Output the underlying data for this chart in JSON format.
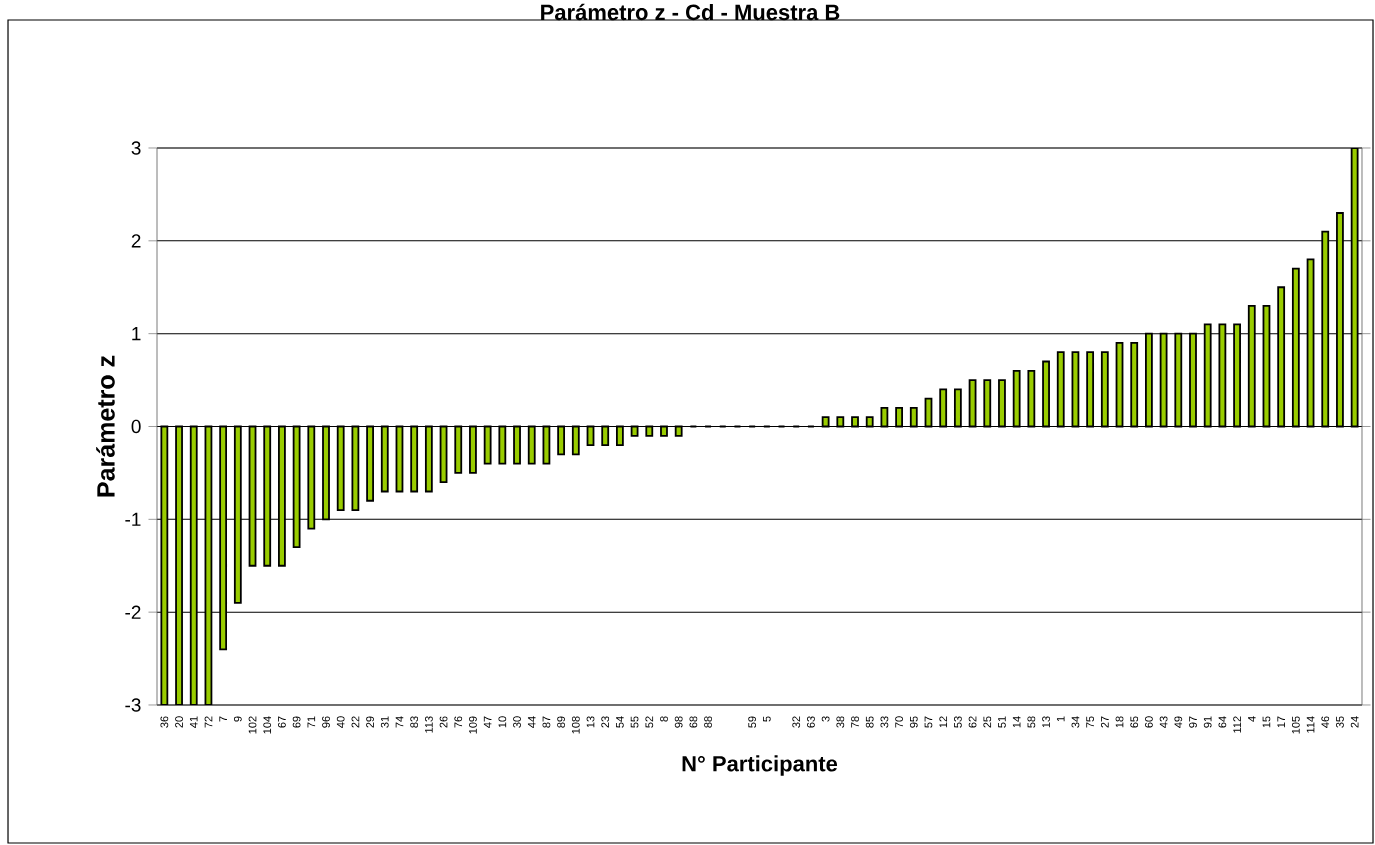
{
  "chart_data": {
    "type": "bar",
    "title": "Parámetro z - Cd - Muestra B",
    "xlabel": "N° Participante",
    "ylabel": "Parámetro z",
    "categories": [
      "36",
      "20",
      "41",
      "72",
      "7",
      "9",
      "102",
      "104",
      "67",
      "69",
      "71",
      "96",
      "40",
      "22",
      "29",
      "31",
      "74",
      "83",
      "113",
      "26",
      "76",
      "109",
      "47",
      "10",
      "30",
      "44",
      "87",
      "89",
      "108",
      "13",
      "23",
      "54",
      "55",
      "52",
      "8",
      "98",
      "68",
      "88",
      null,
      null,
      "59",
      "5",
      null,
      "32",
      "63",
      "3",
      "38",
      "78",
      "85",
      "33",
      "70",
      "95",
      "57",
      "12",
      "53",
      "62",
      "25",
      "51",
      "14",
      "58",
      "13",
      "1",
      "34",
      "75",
      "27",
      "18",
      "65",
      "60",
      "43",
      "49",
      "97",
      "91",
      "64",
      "112",
      "4",
      "15",
      "17",
      "105",
      "114",
      "46",
      "35",
      "24"
    ],
    "values": [
      -3,
      -3,
      -3,
      -3,
      -2.4,
      -1.9,
      -1.5,
      -1.5,
      -1.5,
      -1.3,
      -1.1,
      -1.0,
      -0.9,
      -0.9,
      -0.8,
      -0.7,
      -0.7,
      -0.7,
      -0.7,
      -0.6,
      -0.5,
      -0.5,
      -0.4,
      -0.4,
      -0.4,
      -0.4,
      -0.4,
      -0.3,
      -0.3,
      -0.2,
      -0.2,
      -0.2,
      -0.1,
      -0.1,
      -0.1,
      -0.1,
      0,
      0,
      0,
      0,
      0,
      0,
      0,
      0,
      0,
      0.1,
      0.1,
      0.1,
      0.1,
      0.2,
      0.2,
      0.2,
      0.3,
      0.4,
      0.4,
      0.5,
      0.5,
      0.5,
      0.6,
      0.6,
      0.7,
      0.8,
      0.8,
      0.8,
      0.8,
      0.9,
      0.9,
      1.0,
      1.0,
      1.0,
      1.0,
      1.1,
      1.1,
      1.1,
      1.3,
      1.3,
      1.5,
      1.7,
      1.8,
      2.1,
      2.3,
      3
    ],
    "color": "#99cc00",
    "ylim": [
      -3,
      3
    ],
    "yticks": [
      -3,
      -2,
      -1,
      0,
      1,
      2,
      3
    ],
    "grid": "y"
  }
}
